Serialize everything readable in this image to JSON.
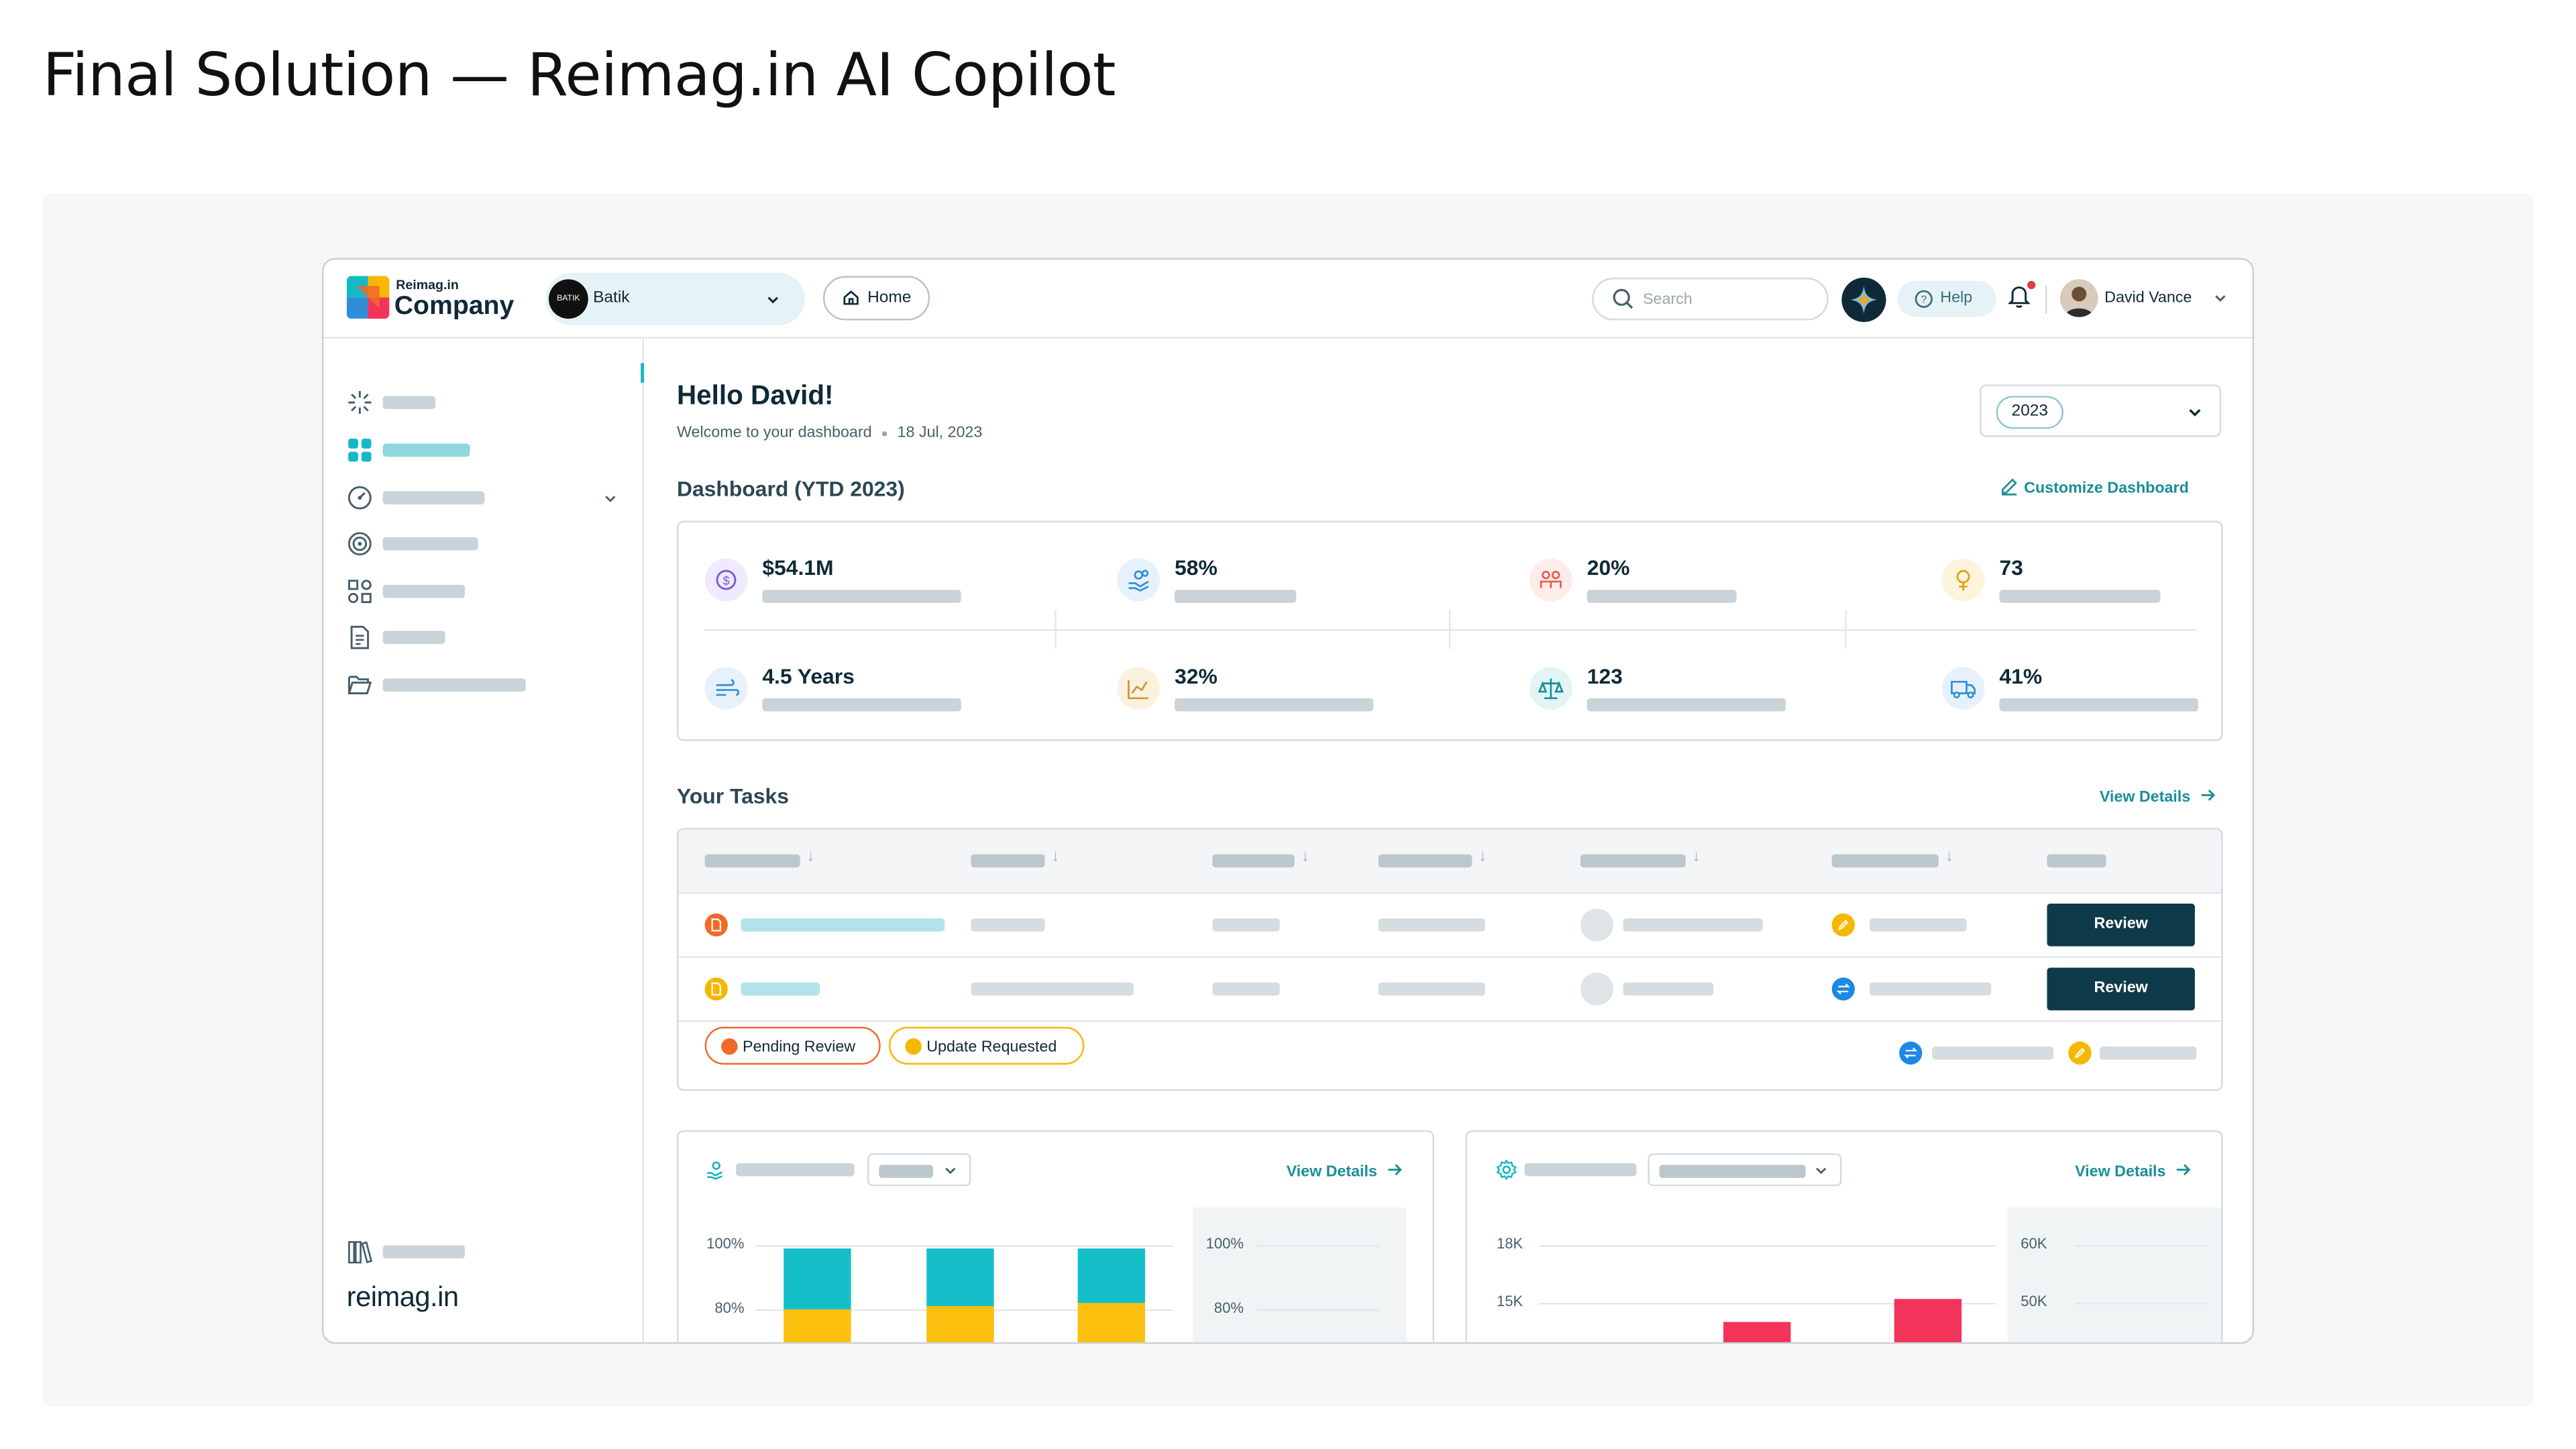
{
  "page": {
    "title": "Final Solution — Reimag.in AI Copilot"
  },
  "topbar": {
    "logo_small": "Reimag.in",
    "logo_big": "Company",
    "company_avatar_text": "BATIK",
    "company_name": "Batik",
    "home_label": "Home",
    "search_placeholder": "Search",
    "copilot_icon": "sparkle-icon",
    "help_label": "Help",
    "user_name": "David Vance",
    "notification_dot_color": "#e63946"
  },
  "sidebar": {
    "icons": [
      "sparkle-burst-icon",
      "dashboard-grid-icon",
      "gauge-icon",
      "target-icon",
      "components-icon",
      "document-icon",
      "folder-open-icon"
    ],
    "active_index": 1,
    "footer_icon": "library-icon",
    "brand": "reimag.in"
  },
  "main": {
    "greeting": "Hello David!",
    "welcome": "Welcome to your dashboard",
    "date": "18 Jul, 2023",
    "year": "2023",
    "dashboard_title": "Dashboard (YTD 2023)",
    "customize_label": "Customize Dashboard"
  },
  "kpis": [
    {
      "value": "$54.1M",
      "icon": "dollar-icon",
      "color": "#7b5cd6"
    },
    {
      "value": "58%",
      "icon": "hand-coins-icon",
      "color": "#2f8fd6"
    },
    {
      "value": "20%",
      "icon": "people-icon",
      "color": "#e85c4a"
    },
    {
      "value": "73",
      "icon": "female-icon",
      "color": "#e0a419"
    },
    {
      "value": "4.5 Years",
      "icon": "wind-icon",
      "color": "#2f8fd6"
    },
    {
      "value": "32%",
      "icon": "line-chart-icon",
      "color": "#c99a2e"
    },
    {
      "value": "123",
      "icon": "scale-icon",
      "color": "#1a8e99"
    },
    {
      "value": "41%",
      "icon": "truck-icon",
      "color": "#2f8fd6"
    }
  ],
  "tasks": {
    "title": "Your Tasks",
    "view_details": "View Details",
    "rows": [
      {
        "status_color": "#f06a2a",
        "action": "Review",
        "badge_color": "#f5b800"
      },
      {
        "status_color": "#f5b800",
        "action": "Review",
        "badge_color": "#1e88e5"
      }
    ],
    "legend": [
      {
        "label": "Pending Review",
        "color": "#f06a2a",
        "border": "#f06a2a"
      },
      {
        "label": "Update Requested",
        "color": "#f5b800",
        "border": "#f5b800"
      }
    ]
  },
  "chart_data": [
    {
      "type": "bar",
      "title": "",
      "categories": [
        "",
        "",
        ""
      ],
      "series": [
        {
          "values": [
            80,
            81,
            82
          ],
          "color": "#fbbf0e"
        },
        {
          "values": [
            19,
            18,
            17
          ],
          "color": "#14bfc9"
        }
      ],
      "y_ticks_left": [
        "100%",
        "80%"
      ],
      "y_ticks_right": [
        "100%",
        "80%"
      ],
      "view_details": "View Details"
    },
    {
      "type": "bar",
      "title": "",
      "categories": [
        "",
        ""
      ],
      "series": [
        {
          "values": [
            14000,
            15200
          ],
          "color": "#f3335a"
        }
      ],
      "y_ticks_left": [
        "18K",
        "15K"
      ],
      "y_ticks_right": [
        "60K",
        "50K"
      ],
      "view_details": "View Details"
    }
  ]
}
